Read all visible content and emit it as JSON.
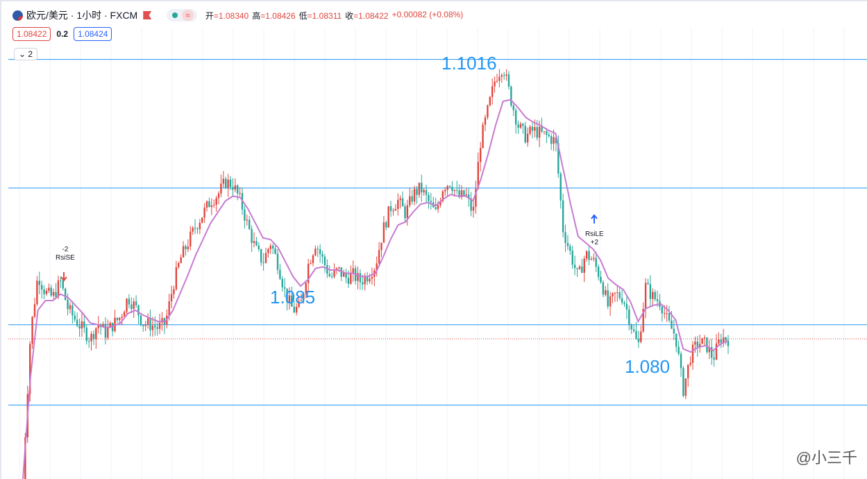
{
  "header": {
    "symbol_title": "欧元/美元 · 1小时 · FXCM",
    "approx_badge": "≈",
    "ohlc": {
      "open_label": "开",
      "open": "=1.08340",
      "high_label": "高",
      "high": "=1.08426",
      "low_label": "低",
      "low": "=1.08311",
      "close_label": "收",
      "close": "=1.08422",
      "change": "+0.00082 (+0.08%)"
    }
  },
  "trade": {
    "sell_price": "1.08422",
    "spread": "0.2",
    "buy_price": "1.08424"
  },
  "indicators_toggle": "2",
  "annotations": {
    "level_top": "1.1016",
    "level_mid": "1.085",
    "level_low": "1.080",
    "short_signal_qty": "-2",
    "short_signal_name": "RsiSE",
    "long_signal_name": "RsiLE",
    "long_signal_qty": "+2"
  },
  "watermark": "@小三千",
  "colors": {
    "up": "#e0453e",
    "down": "#26a69a",
    "ma": "#c77ad1",
    "level": "#2196f3"
  },
  "chart_data": {
    "type": "candlestick",
    "title": "欧元/美元 · 1小时 · FXCM",
    "y_range": [
      1.0755,
      1.1053
    ],
    "horizontal_levels": [
      1.1016,
      1.0936,
      1.0851,
      1.0801
    ],
    "current_price": 1.08422,
    "series": [
      {
        "name": "price",
        "close_path": [
          1.0755,
          1.0845,
          1.0882,
          1.0871,
          1.0868,
          1.0878,
          1.0861,
          1.0854,
          1.0848,
          1.0842,
          1.0852,
          1.0846,
          1.0851,
          1.0856,
          1.0868,
          1.0862,
          1.0852,
          1.0851,
          1.0849,
          1.0852,
          1.0875,
          1.0892,
          1.0902,
          1.0912,
          1.092,
          1.0928,
          1.0932,
          1.094,
          1.0938,
          1.0928,
          1.0912,
          1.0898,
          1.089,
          1.0902,
          1.0889,
          1.087,
          1.086,
          1.0862,
          1.0888,
          1.0902,
          1.0891,
          1.088,
          1.0885,
          1.088,
          1.0882,
          1.0878,
          1.0882,
          1.0888,
          1.091,
          1.0924,
          1.0928,
          1.092,
          1.0932,
          1.0936,
          1.0928,
          1.092,
          1.0937,
          1.094,
          1.093,
          1.0932,
          1.092,
          1.0965,
          1.0985,
          1.1005,
          1.1012,
          1.0992,
          1.0975,
          1.0968,
          1.0972,
          1.097,
          1.0968,
          1.0965,
          1.091,
          1.0895,
          1.088,
          1.0895,
          1.0891,
          1.088,
          1.0862,
          1.087,
          1.0868,
          1.0852,
          1.0837,
          1.0875,
          1.0868,
          1.0865,
          1.0852,
          1.0844,
          1.081,
          1.0832,
          1.084,
          1.0839,
          1.083,
          1.0843,
          1.0842
        ]
      },
      {
        "name": "MA",
        "path": [
          1.0755,
          1.0818,
          1.086,
          1.0866,
          1.0866,
          1.087,
          1.0868,
          1.0863,
          1.0858,
          1.0852,
          1.0851,
          1.0849,
          1.085,
          1.0852,
          1.0858,
          1.086,
          1.0857,
          1.0855,
          1.0853,
          1.0853,
          1.086,
          1.0871,
          1.0882,
          1.0894,
          1.0904,
          1.0914,
          1.0921,
          1.0928,
          1.0931,
          1.093,
          1.0923,
          1.0914,
          1.0905,
          1.0904,
          1.0899,
          1.089,
          1.0881,
          1.0875,
          1.0879,
          1.0886,
          1.0887,
          1.0885,
          1.0885,
          1.0883,
          1.0883,
          1.0881,
          1.0881,
          1.0883,
          1.0893,
          1.0904,
          1.0913,
          1.0915,
          1.0921,
          1.0926,
          1.0927,
          1.0925,
          1.0929,
          1.0932,
          1.0931,
          1.0931,
          1.0928,
          1.0941,
          1.0957,
          1.0975,
          1.099,
          1.0991,
          1.0986,
          1.098,
          1.0977,
          1.0975,
          1.0972,
          1.097,
          1.0948,
          1.0926,
          1.0906,
          1.0902,
          1.0898,
          1.0891,
          1.088,
          1.0876,
          1.0873,
          1.0865,
          1.0853,
          1.0861,
          1.0863,
          1.0864,
          1.086,
          1.0854,
          1.0836,
          1.0834,
          1.0837,
          1.0838,
          1.0835,
          1.0839,
          1.0841
        ]
      }
    ],
    "signals": [
      {
        "type": "short",
        "name": "RsiSE",
        "qty": -2
      },
      {
        "type": "long",
        "name": "RsiLE",
        "qty": 2
      }
    ]
  }
}
